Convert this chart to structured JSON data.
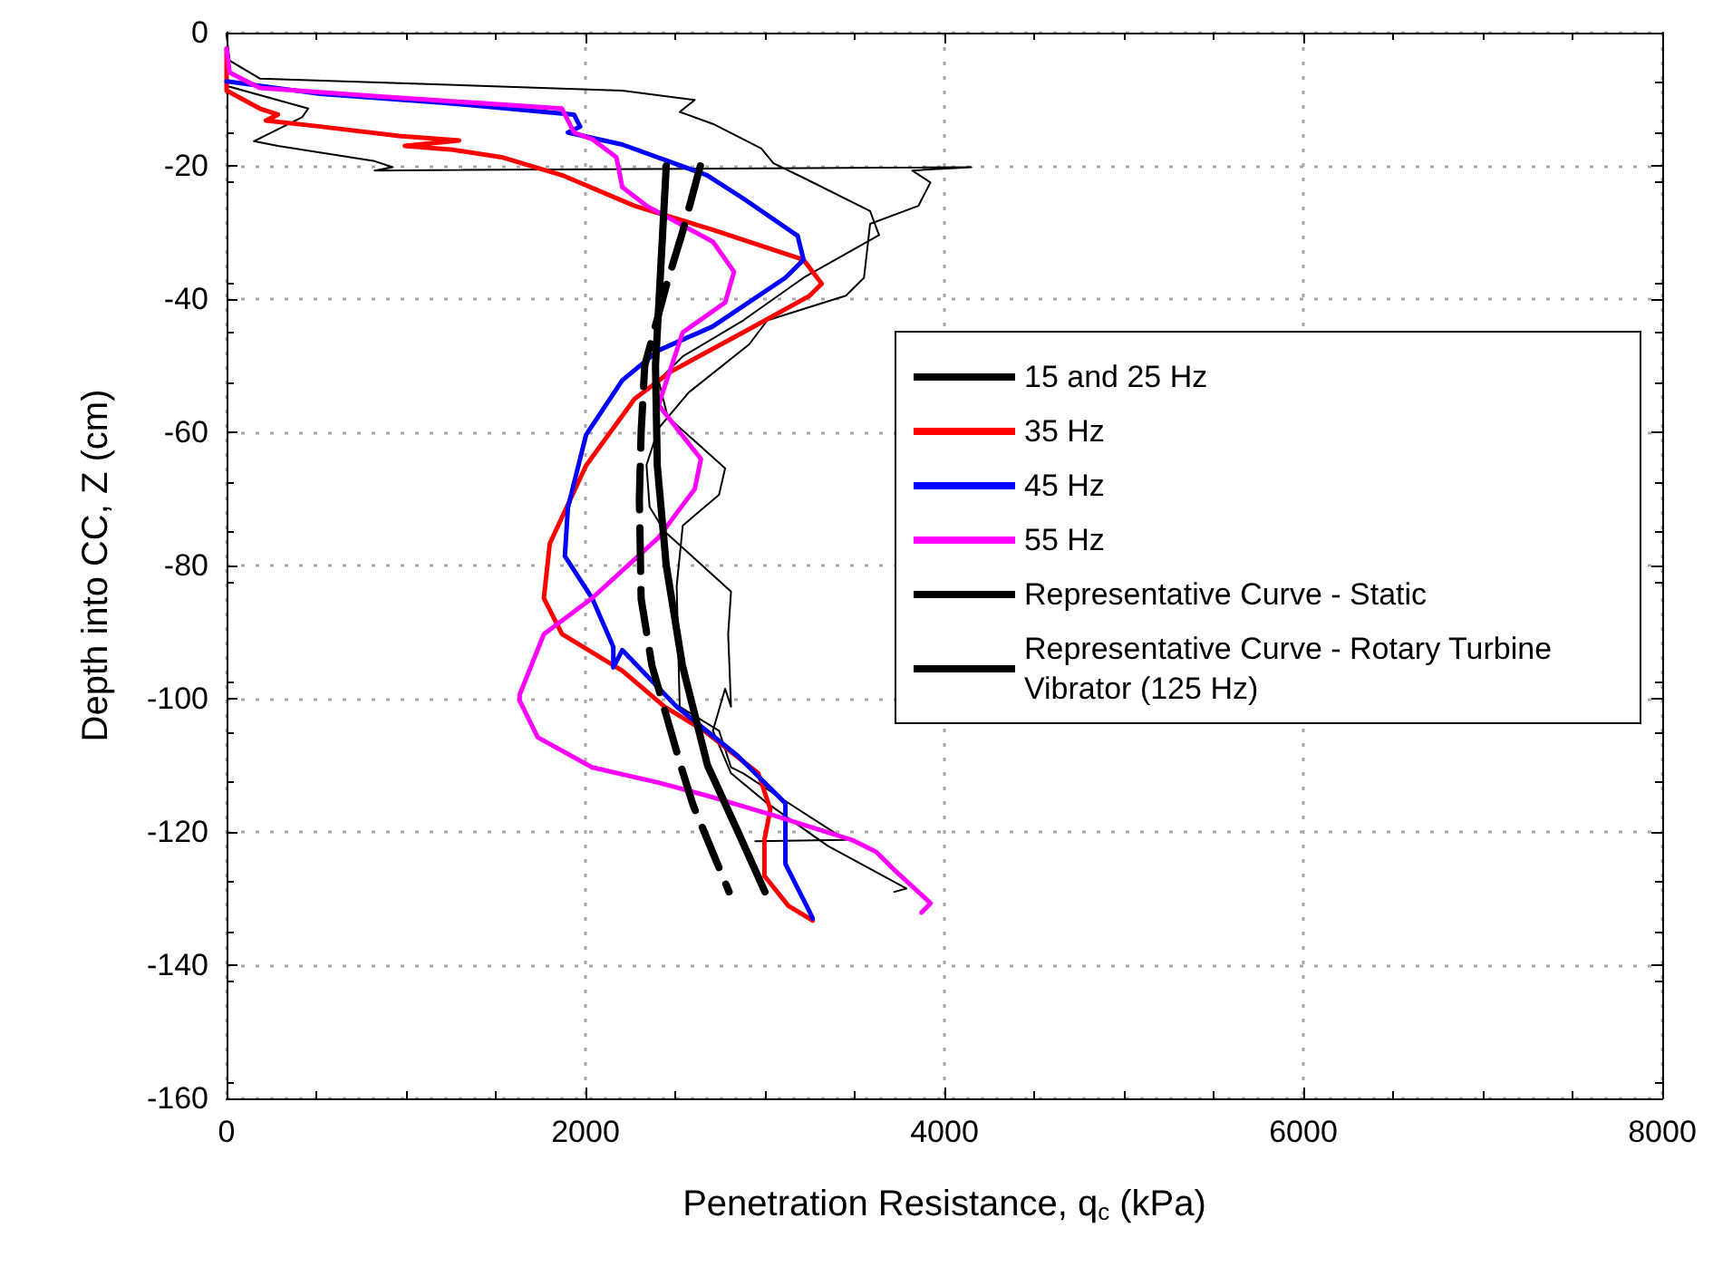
{
  "chart_data": {
    "type": "line",
    "xlabel": "Penetration Resistance, q$_{c}$ (kPa)",
    "ylabel": "Depth into CC, Z (cm)",
    "xlim": [
      0,
      8000
    ],
    "ylim": [
      -160,
      0
    ],
    "xticks": [
      0,
      2000,
      4000,
      6000,
      8000
    ],
    "yticks": [
      -160,
      -140,
      -120,
      -100,
      -80,
      -60,
      -40,
      -20,
      0
    ],
    "grid": true,
    "legend": "right",
    "marker": "none",
    "line_style": "solid",
    "series": [
      {
        "name": "15 and 25 Hz",
        "color": "#000000",
        "x": [
          0,
          17,
          185,
          2205,
          2609,
          2525,
          2710,
          2980,
          3047,
          3215,
          3586,
          3636,
          3215,
          2879,
          2542,
          2407,
          2458,
          2778,
          2744,
          2542,
          2508,
          2525,
          2744,
          2811,
          2879,
          3081,
          3451,
          2946
        ],
        "values": [
          -0.4,
          -4.2,
          -6.9,
          -8.7,
          -10.1,
          -11.9,
          -13.7,
          -17.4,
          -19.6,
          -21.8,
          -26.8,
          -30.4,
          -36.8,
          -43.2,
          -48.6,
          -52.2,
          -57.7,
          -65.4,
          -69.4,
          -74,
          -83.1,
          -101.2,
          -104.8,
          -110.3,
          -111.2,
          -114.8,
          -121.2,
          -121.4
        ]
      },
      {
        "color": "#000000",
        "x": [
          0,
          455,
          421,
          152,
          286,
          825,
          926,
          825,
          4150,
          3821,
          3922,
          3855,
          3586,
          3552,
          3451,
          3013,
          2912,
          2576,
          2407,
          2340,
          2357,
          2441,
          2811,
          2795,
          2811,
          2778,
          2710,
          2811,
          3013,
          3350,
          3788,
          3721
        ],
        "values": [
          -8,
          -11.4,
          -12.7,
          -16.3,
          -17,
          -19.3,
          -20.2,
          -20.7,
          -20.2,
          -20.7,
          -22.5,
          -26,
          -28.7,
          -36.8,
          -39.5,
          -43.2,
          -46.8,
          -54,
          -59.4,
          -64.9,
          -71.2,
          -74.9,
          -83.9,
          -90.3,
          -101.2,
          -98.5,
          -104.8,
          -111.2,
          -115.7,
          -122.1,
          -128.5,
          -129
        ]
      },
      {
        "name": "35 Hz",
        "color": "#ff0000",
        "x": [
          0,
          0,
          185,
          286,
          219,
          522,
          960,
          1296,
          993,
          1263,
          1532,
          1869,
          2273,
          2710,
          3215,
          3316,
          3249,
          2879,
          2475,
          2273,
          2003,
          1801,
          1768,
          1869,
          2205,
          2441,
          2660,
          2963,
          3030,
          2997,
          2997,
          3131,
          3266
        ],
        "values": [
          -2.4,
          -8.7,
          -11.4,
          -12.3,
          -13.2,
          -14.1,
          -15.5,
          -16.2,
          -17,
          -17.6,
          -18.7,
          -21.4,
          -26,
          -29.6,
          -34.1,
          -37.7,
          -39.5,
          -45,
          -50.9,
          -55,
          -65,
          -76.7,
          -84.9,
          -90.3,
          -95.8,
          -101.2,
          -104.8,
          -111.2,
          -116.6,
          -121.2,
          -126.6,
          -131.1,
          -133.3
        ]
      },
      {
        "name": "45 Hz",
        "color": "#0000ff",
        "x": [
          0,
          522,
          1195,
          1936,
          1970,
          1902,
          2205,
          2677,
          2879,
          3182,
          3215,
          3114,
          2710,
          2407,
          2205,
          2003,
          1902,
          1885,
          2037,
          2155,
          2155,
          2205,
          2508,
          2845,
          3114,
          3114,
          3249,
          3266
        ],
        "values": [
          -7.3,
          -9.2,
          -10.5,
          -12.3,
          -14.1,
          -15,
          -16.8,
          -21.4,
          -24.9,
          -30.5,
          -34.1,
          -36.8,
          -44.1,
          -47.7,
          -52.2,
          -60.4,
          -71.3,
          -78.6,
          -84.9,
          -92.2,
          -95.3,
          -92.7,
          -101.2,
          -108.5,
          -115.7,
          -124.8,
          -132,
          -133
        ]
      },
      {
        "name": "55 Hz",
        "color": "#ff00ff",
        "x": [
          0,
          17,
          185,
          859,
          1869,
          1936,
          2037,
          2172,
          2205,
          2340,
          2710,
          2828,
          2778,
          2542,
          2407,
          2508,
          2643,
          2609,
          2407,
          2037,
          1768,
          1633,
          1633,
          1734,
          2037,
          2407,
          2710,
          3047,
          3485,
          3620,
          3721,
          3923,
          3872
        ],
        "values": [
          -2.4,
          -6,
          -8.3,
          -9.6,
          -11.4,
          -15,
          -16,
          -18.7,
          -23.2,
          -26,
          -31.4,
          -35.9,
          -40.5,
          -45,
          -55.9,
          -59.4,
          -64,
          -68.5,
          -75.8,
          -84.9,
          -90.3,
          -99.4,
          -100.3,
          -105.8,
          -110.3,
          -112.6,
          -114.8,
          -117.5,
          -121.2,
          -123,
          -125.7,
          -130.7,
          -132.1
        ]
      },
      {
        "name": "Representative Curve - Static",
        "color": "#000000",
        "x": [
          2450,
          2420,
          2390,
          2400,
          2450,
          2540,
          2680,
          2850,
          3000
        ],
        "values": [
          -20,
          -35,
          -50,
          -65,
          -80,
          -95,
          -110,
          -120,
          -129
        ]
      },
      {
        "name": "Representative Curve - Rotary Turbine Vibrator (125 Hz)",
        "color": "#000000",
        "line_style": "dashed",
        "x": [
          2640,
          2540,
          2450,
          2330,
          2310,
          2300,
          2310,
          2370,
          2530,
          2600,
          2800
        ],
        "values": [
          -20,
          -30,
          -38,
          -50,
          -60,
          -70,
          -85,
          -95,
          -110,
          -116,
          -129
        ]
      }
    ]
  }
}
